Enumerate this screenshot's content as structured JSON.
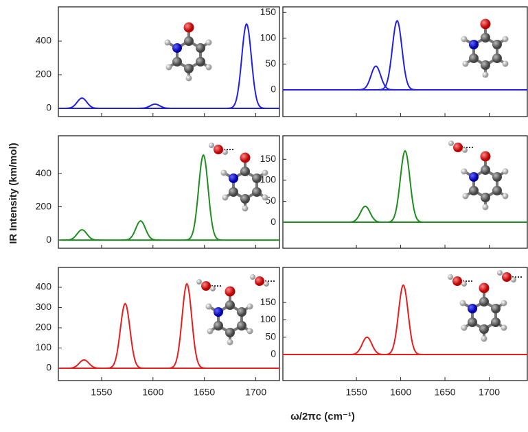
{
  "y_axis_label": "IR Intensity (km/mol)",
  "x_axis_label": "ω/2πc (cm⁻¹)",
  "chart_data": [
    {
      "type": "line",
      "color": "#1f1fe6",
      "xlim": [
        1508,
        1723
      ],
      "xticks": [
        1550,
        1600,
        1650,
        1700
      ],
      "xtick_labels": false,
      "ylim": [
        -49,
        604
      ],
      "yticks": [
        0,
        200,
        400
      ],
      "x": [
        1531,
        1602,
        1691
      ],
      "values": [
        61,
        25,
        502
      ]
    },
    {
      "type": "line",
      "color": "#1f1fe6",
      "xlim": [
        1467,
        1743
      ],
      "xticks": [
        1550,
        1600,
        1650,
        1700
      ],
      "xtick_labels": false,
      "ylim": [
        -52,
        161
      ],
      "yticks": [
        0,
        50,
        100,
        150
      ],
      "x": [
        1572,
        1596
      ],
      "values": [
        46,
        134
      ]
    },
    {
      "type": "line",
      "color": "#1e8c1e",
      "xlim": [
        1508,
        1723
      ],
      "xticks": [
        1550,
        1600,
        1650,
        1700
      ],
      "xtick_labels": false,
      "ylim": [
        -49,
        627
      ],
      "yticks": [
        0,
        200,
        400
      ],
      "x": [
        1531,
        1588,
        1649
      ],
      "values": [
        62,
        115,
        511
      ]
    },
    {
      "type": "line",
      "color": "#1e8c1e",
      "xlim": [
        1467,
        1743
      ],
      "xticks": [
        1550,
        1600,
        1650,
        1700
      ],
      "xtick_labels": false,
      "ylim": [
        -62,
        206
      ],
      "yticks": [
        0,
        50,
        100,
        150
      ],
      "x": [
        1560,
        1605
      ],
      "values": [
        38,
        170
      ]
    },
    {
      "type": "line",
      "color": "#e61e1e",
      "xlim": [
        1508,
        1723
      ],
      "xticks": [
        1550,
        1600,
        1650,
        1700
      ],
      "xtick_labels": true,
      "ylim": [
        -61,
        498
      ],
      "yticks": [
        0,
        100,
        200,
        300,
        400
      ],
      "x": [
        1533,
        1573,
        1633
      ],
      "values": [
        41,
        319,
        417
      ]
    },
    {
      "type": "line",
      "color": "#e61e1e",
      "xlim": [
        1467,
        1743
      ],
      "xticks": [
        1550,
        1600,
        1650,
        1700
      ],
      "xtick_labels": true,
      "ylim": [
        -75,
        251
      ],
      "yticks": [
        0,
        50,
        100,
        150
      ],
      "x": [
        1562,
        1603
      ],
      "values": [
        50,
        200
      ]
    }
  ]
}
